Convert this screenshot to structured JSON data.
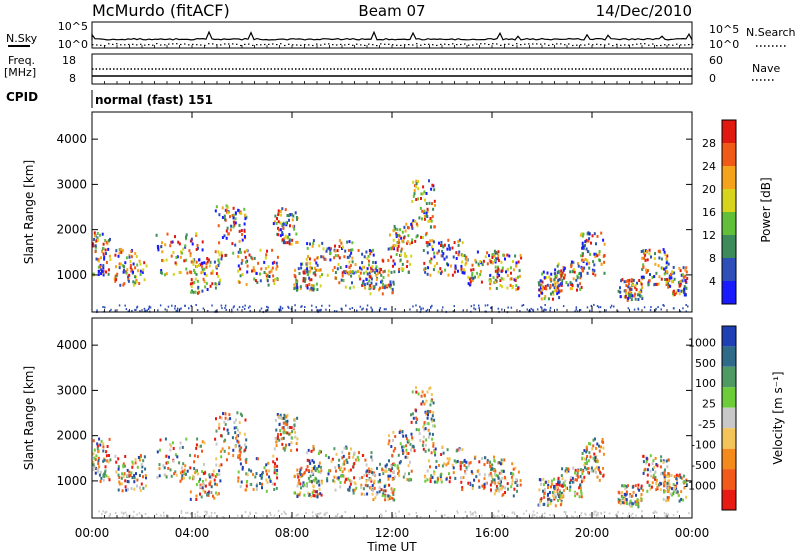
{
  "header": {
    "station": "McMurdo (fitACF)",
    "beam": "Beam 07",
    "date": "14/Dec/2010"
  },
  "status_panel": {
    "left_top_label": "N.Sky",
    "right_top_label": "N.Search",
    "noise_ticks_left": [
      "10^5",
      "10^0"
    ],
    "noise_ticks_right": [
      "10^5",
      "10^0"
    ],
    "freq_label": "Freq.",
    "freq_unit": "[MHz]",
    "freq_ticks": [
      "18",
      "8"
    ],
    "nave_label": "Nave",
    "nave_ticks": [
      "60",
      "0"
    ],
    "cpid_label": "CPID",
    "cpid_value": "normal (fast) 151"
  },
  "chart_data": [
    {
      "type": "heatmap",
      "name": "power",
      "ylabel": "Slant Range [km]",
      "ylim": [
        180,
        4600
      ],
      "yticks": [
        "1000",
        "2000",
        "3000",
        "4000"
      ],
      "colorbar_label": "Power [dB]",
      "colorbar_ticks": [
        "4",
        "8",
        "12",
        "16",
        "20",
        "24",
        "28"
      ],
      "colors": [
        "#1a1aff",
        "#2e4fb8",
        "#3d8a5a",
        "#62bf3a",
        "#d8d41e",
        "#f5a21c",
        "#ef5a16",
        "#e01a10"
      ]
    },
    {
      "type": "heatmap",
      "name": "velocity",
      "ylabel": "Slant Range [km]",
      "ylim": [
        180,
        4600
      ],
      "yticks": [
        "1000",
        "2000",
        "3000",
        "4000"
      ],
      "colorbar_label": "Velocity [m s⁻¹]",
      "colorbar_ticks": [
        "1000",
        "500",
        "100",
        "25",
        "-25",
        "-100",
        "-500",
        "-1000"
      ],
      "colors": [
        "#1f3fb5",
        "#2f6a88",
        "#4f9a62",
        "#6ccc3a",
        "#c8c8c8",
        "#f3c45a",
        "#f58a1c",
        "#f25a1a",
        "#e81a14"
      ]
    }
  ],
  "x_axis": {
    "label": "Time UT",
    "ticks": [
      "00:00",
      "04:00",
      "08:00",
      "12:00",
      "16:00",
      "20:00",
      "00:00"
    ],
    "hours": [
      0,
      4,
      8,
      12,
      16,
      20,
      24
    ]
  }
}
